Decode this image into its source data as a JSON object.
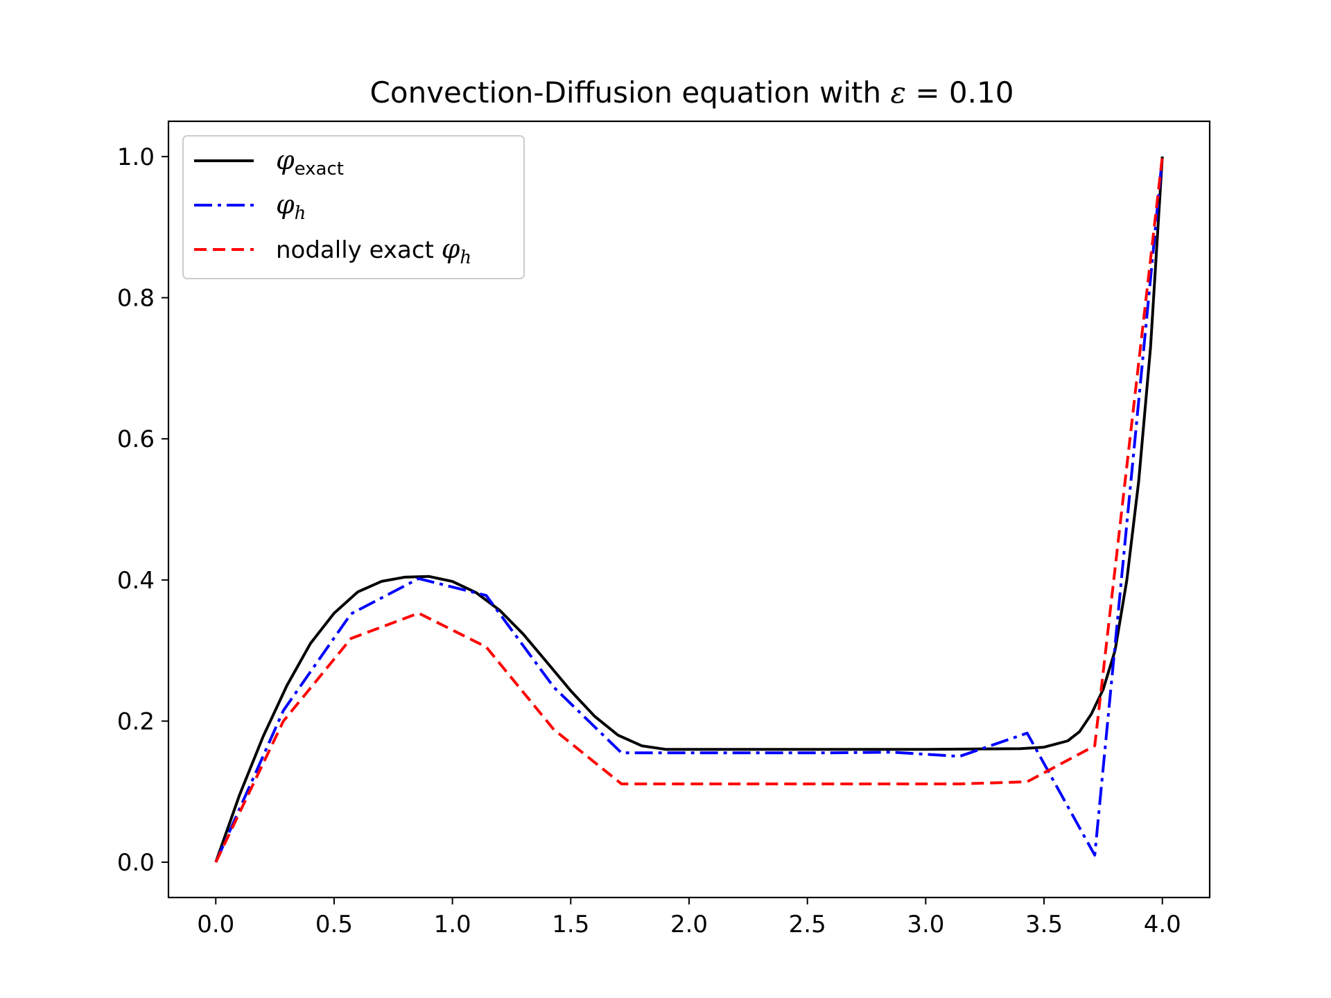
{
  "chart_data": {
    "type": "line",
    "title_prefix": "Convection-Diffusion equation with ",
    "title_symbol": "ε",
    "title_eq": " = 0.10",
    "xlabel": "",
    "ylabel": "",
    "xlim": [
      -0.2,
      4.2
    ],
    "ylim": [
      -0.05,
      1.05
    ],
    "xticks": [
      0.0,
      0.5,
      1.0,
      1.5,
      2.0,
      2.5,
      3.0,
      3.5,
      4.0
    ],
    "xtick_labels": [
      "0.0",
      "0.5",
      "1.0",
      "1.5",
      "2.0",
      "2.5",
      "3.0",
      "3.5",
      "4.0"
    ],
    "yticks": [
      0.0,
      0.2,
      0.4,
      0.6,
      0.8,
      1.0
    ],
    "ytick_labels": [
      "0.0",
      "0.2",
      "0.4",
      "0.6",
      "0.8",
      "1.0"
    ],
    "grid": false,
    "legend_position": "upper-left",
    "series": [
      {
        "name": "φ",
        "subscript": "exact",
        "color": "#000000",
        "style": "solid",
        "x": [
          0.0,
          0.1,
          0.2,
          0.3,
          0.4,
          0.5,
          0.6,
          0.7,
          0.8,
          0.9,
          1.0,
          1.1,
          1.2,
          1.3,
          1.4,
          1.5,
          1.6,
          1.7,
          1.8,
          1.9,
          2.0,
          2.5,
          3.0,
          3.4,
          3.5,
          3.6,
          3.65,
          3.7,
          3.75,
          3.8,
          3.85,
          3.9,
          3.95,
          4.0
        ],
        "y": [
          0.0,
          0.095,
          0.178,
          0.25,
          0.31,
          0.353,
          0.383,
          0.398,
          0.404,
          0.405,
          0.398,
          0.382,
          0.357,
          0.323,
          0.283,
          0.243,
          0.207,
          0.18,
          0.165,
          0.16,
          0.16,
          0.16,
          0.16,
          0.161,
          0.163,
          0.172,
          0.185,
          0.21,
          0.245,
          0.3,
          0.4,
          0.54,
          0.73,
          1.0
        ]
      },
      {
        "name": "φ",
        "subscript": "h",
        "color": "#0000ff",
        "style": "dashdot",
        "x": [
          0.0,
          0.2857,
          0.5714,
          0.8571,
          1.1429,
          1.4286,
          1.7143,
          2.0,
          2.2857,
          2.5714,
          2.8571,
          3.1429,
          3.4286,
          3.7143,
          4.0
        ],
        "y": [
          0.0,
          0.215,
          0.352,
          0.402,
          0.378,
          0.248,
          0.155,
          0.155,
          0.155,
          0.155,
          0.156,
          0.15,
          0.183,
          0.01,
          1.0
        ]
      },
      {
        "name": "nodally exact φ",
        "subscript": "h",
        "color": "#ff0000",
        "style": "dashed",
        "x": [
          0.0,
          0.2857,
          0.5714,
          0.8571,
          1.1429,
          1.4286,
          1.7143,
          2.0,
          2.2857,
          2.5714,
          2.8571,
          3.1429,
          3.4286,
          3.7143,
          4.0
        ],
        "y": [
          0.0,
          0.2,
          0.317,
          0.353,
          0.305,
          0.188,
          0.111,
          0.111,
          0.111,
          0.111,
          0.111,
          0.111,
          0.114,
          0.165,
          1.0
        ]
      }
    ]
  }
}
